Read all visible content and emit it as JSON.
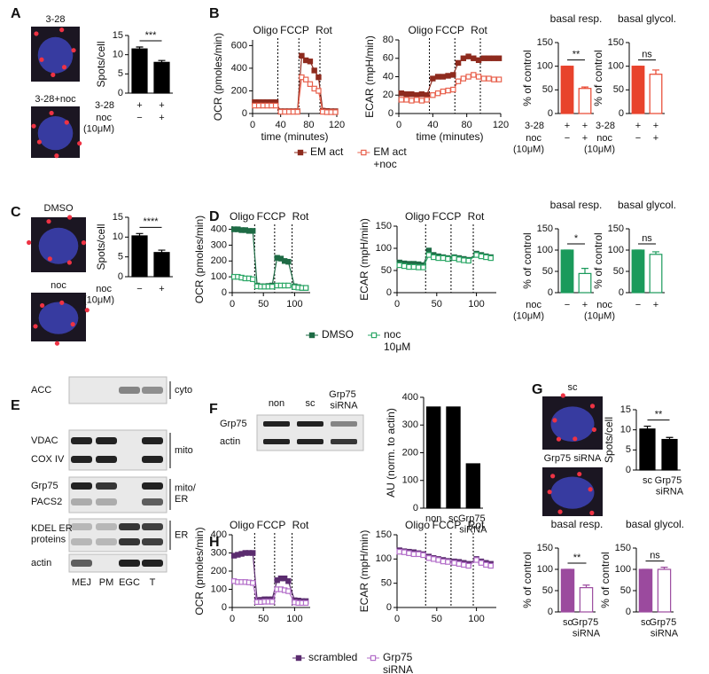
{
  "panel_labels": [
    "A",
    "B",
    "C",
    "D",
    "E",
    "F",
    "G",
    "H"
  ],
  "images": [
    "3-28",
    "3-28+noc",
    "DMSO",
    "noc",
    "sc",
    "Grp75 siRNA"
  ],
  "blot_E": {
    "rows": [
      "ACC",
      "VDAC",
      "COX IV",
      "Grp75",
      "PACS2",
      "KDEL ER proteins",
      "actin"
    ],
    "groups": [
      "cyto",
      "mito",
      "mito/ ER",
      "ER"
    ],
    "lanes": [
      "MEJ",
      "PM",
      "EGC",
      "T"
    ]
  },
  "blot_F": {
    "rows": [
      "Grp75",
      "actin"
    ],
    "lanes": [
      "non",
      "sc",
      "Grp75 siRNA"
    ]
  },
  "chart_data": [
    {
      "type": "bar",
      "ylabel": "Spots/cell",
      "ylim": [
        0,
        15
      ],
      "yticks": [
        0,
        5,
        10,
        15
      ],
      "values": [
        11.5,
        8
      ],
      "errors": [
        0.5,
        0.5
      ],
      "color": "#000000",
      "significance": "***",
      "conditions": [
        {
          "label": "3-28",
          "marks": [
            "+",
            "+"
          ]
        },
        {
          "label": "noc (10μM)",
          "marks": [
            "−",
            "+"
          ]
        }
      ]
    },
    {
      "type": "line",
      "ylabel": "OCR (pmoles/min)",
      "xlabel": "time (minutes)",
      "xlim": [
        0,
        120
      ],
      "xticks": [
        0,
        40,
        80,
        120
      ],
      "ylim": [
        0,
        650
      ],
      "yticks": [
        0,
        200,
        400,
        600
      ],
      "injections": [
        {
          "label": "Oligo",
          "x": 36
        },
        {
          "label": "FCCP",
          "x": 66
        },
        {
          "label": "Rot",
          "x": 96
        }
      ],
      "x": [
        3,
        9,
        15,
        21,
        27,
        33,
        40,
        46,
        52,
        58,
        64,
        70,
        76,
        82,
        88,
        94,
        100,
        106,
        112,
        118
      ],
      "series": [
        {
          "name": "EM act",
          "color": "#8e2b1e",
          "marker": "filled",
          "values": [
            100,
            100,
            100,
            100,
            100,
            100,
            20,
            20,
            20,
            20,
            20,
            510,
            470,
            460,
            380,
            320,
            25,
            22,
            20,
            20
          ]
        },
        {
          "name": "EM act +noc",
          "color": "#e8604c",
          "marker": "hollow",
          "values": [
            70,
            70,
            70,
            70,
            70,
            70,
            15,
            15,
            15,
            15,
            15,
            320,
            300,
            260,
            220,
            200,
            15,
            12,
            12,
            12
          ]
        }
      ]
    },
    {
      "type": "line",
      "ylabel": "ECAR (mpH/min)",
      "xlabel": "time (minutes)",
      "xlim": [
        0,
        120
      ],
      "xticks": [
        0,
        40,
        80,
        120
      ],
      "ylim": [
        0,
        80
      ],
      "yticks": [
        0,
        20,
        40,
        60,
        80
      ],
      "injections": [
        {
          "label": "Oligo",
          "x": 36
        },
        {
          "label": "FCCP",
          "x": 66
        },
        {
          "label": "Rot",
          "x": 96
        }
      ],
      "x": [
        3,
        9,
        15,
        21,
        27,
        33,
        40,
        46,
        52,
        58,
        64,
        70,
        76,
        82,
        88,
        94,
        100,
        106,
        112,
        118
      ],
      "series": [
        {
          "color": "#8e2b1e",
          "marker": "filled",
          "values": [
            22,
            21,
            21,
            20,
            21,
            20,
            38,
            40,
            40,
            41,
            42,
            55,
            60,
            62,
            60,
            58,
            60,
            60,
            60,
            60
          ]
        },
        {
          "color": "#e8604c",
          "marker": "hollow",
          "values": [
            15,
            15,
            14,
            15,
            14,
            15,
            20,
            22,
            24,
            25,
            26,
            35,
            38,
            40,
            42,
            40,
            38,
            38,
            37,
            37
          ]
        }
      ]
    },
    {
      "type": "bar",
      "title": "basal resp.",
      "ylabel": "% of control",
      "ylim": [
        0,
        150
      ],
      "yticks": [
        0,
        50,
        100,
        150
      ],
      "values": [
        100,
        53
      ],
      "errors": [
        0,
        3
      ],
      "color": "#e8432c",
      "hollow": [
        false,
        true
      ],
      "significance": "**",
      "conditions": [
        {
          "label": "3-28",
          "marks": [
            "+",
            "+"
          ]
        },
        {
          "label": "noc (10μM)",
          "marks": [
            "−",
            "+"
          ]
        }
      ]
    },
    {
      "type": "bar",
      "title": "basal glycol.",
      "ylabel": "% of control",
      "ylim": [
        0,
        150
      ],
      "yticks": [
        0,
        50,
        100,
        150
      ],
      "values": [
        100,
        83
      ],
      "errors": [
        0,
        9
      ],
      "color": "#e8432c",
      "hollow": [
        false,
        true
      ],
      "significance": "ns",
      "conditions": [
        {
          "label": "3-28",
          "marks": [
            "+",
            "+"
          ]
        },
        {
          "label": "noc (10μM)",
          "marks": [
            "−",
            "+"
          ]
        }
      ]
    },
    {
      "type": "bar",
      "ylabel": "Spots/cell",
      "ylim": [
        0,
        15
      ],
      "yticks": [
        0,
        5,
        10,
        15
      ],
      "values": [
        10.3,
        6.1
      ],
      "errors": [
        0.6,
        0.6
      ],
      "color": "#000000",
      "significance": "****",
      "conditions": [
        {
          "label": "noc (10μM)",
          "marks": [
            "−",
            "+"
          ]
        }
      ]
    },
    {
      "type": "line",
      "ylabel": "OCR (pmoles/min)",
      "xlim": [
        0,
        125
      ],
      "xticks": [
        0,
        50,
        100
      ],
      "ylim": [
        0,
        420
      ],
      "yticks": [
        0,
        100,
        200,
        300,
        400
      ],
      "injections": [
        {
          "label": "Oligo",
          "x": 36
        },
        {
          "label": "FCCP",
          "x": 68
        },
        {
          "label": "Rot",
          "x": 96
        }
      ],
      "x": [
        3,
        9,
        15,
        21,
        27,
        33,
        40,
        46,
        52,
        58,
        64,
        72,
        78,
        84,
        90,
        100,
        106,
        112,
        118
      ],
      "series": [
        {
          "name": "DMSO",
          "color": "#1e6b45",
          "marker": "filled",
          "values": [
            400,
            400,
            395,
            395,
            390,
            390,
            45,
            40,
            40,
            42,
            45,
            220,
            215,
            200,
            195,
            40,
            35,
            30,
            30
          ]
        },
        {
          "name": "noc 10μM",
          "color": "#2ea868",
          "marker": "hollow",
          "values": [
            100,
            100,
            95,
            90,
            90,
            85,
            40,
            38,
            38,
            38,
            38,
            45,
            45,
            45,
            45,
            35,
            32,
            30,
            30
          ]
        }
      ]
    },
    {
      "type": "line",
      "ylabel": "ECAR (mpH/min)",
      "xlim": [
        0,
        125
      ],
      "xticks": [
        0,
        50,
        100
      ],
      "ylim": [
        0,
        150
      ],
      "yticks": [
        0,
        50,
        100,
        150
      ],
      "injections": [
        {
          "label": "Oligo",
          "x": 36
        },
        {
          "label": "FCCP",
          "x": 68
        },
        {
          "label": "Rot",
          "x": 96
        }
      ],
      "x": [
        3,
        9,
        15,
        21,
        27,
        33,
        40,
        46,
        52,
        58,
        64,
        72,
        78,
        84,
        90,
        100,
        106,
        112,
        118
      ],
      "series": [
        {
          "color": "#1e6b45",
          "marker": "filled",
          "values": [
            68,
            66,
            65,
            65,
            64,
            62,
            95,
            85,
            82,
            80,
            78,
            80,
            78,
            76,
            74,
            88,
            85,
            82,
            80
          ]
        },
        {
          "color": "#2ea868",
          "marker": "hollow",
          "values": [
            62,
            60,
            58,
            58,
            57,
            57,
            85,
            80,
            78,
            78,
            76,
            78,
            75,
            73,
            72,
            85,
            82,
            80,
            78
          ]
        }
      ]
    },
    {
      "type": "bar",
      "title": "basal resp.",
      "ylabel": "% of control",
      "ylim": [
        0,
        150
      ],
      "yticks": [
        0,
        50,
        100,
        150
      ],
      "values": [
        100,
        45
      ],
      "errors": [
        0,
        12
      ],
      "color": "#1a9a5b",
      "hollow": [
        false,
        true
      ],
      "significance": "*",
      "conditions": [
        {
          "label": "noc (10μM)",
          "marks": [
            "−",
            "+"
          ]
        }
      ]
    },
    {
      "type": "bar",
      "title": "basal glycol.",
      "ylabel": "% of control",
      "ylim": [
        0,
        150
      ],
      "yticks": [
        0,
        50,
        100,
        150
      ],
      "values": [
        100,
        90
      ],
      "errors": [
        0,
        6
      ],
      "color": "#1a9a5b",
      "hollow": [
        false,
        true
      ],
      "significance": "ns",
      "conditions": [
        {
          "label": "noc (10μM)",
          "marks": [
            "−",
            "+"
          ]
        }
      ]
    },
    {
      "type": "bar",
      "ylabel": "AU (norm. to actin)",
      "ylim": [
        0,
        400
      ],
      "yticks": [
        0,
        100,
        200,
        300,
        400
      ],
      "categories": [
        "non",
        "sc",
        "Grp75 siRNA"
      ],
      "values": [
        365,
        365,
        160
      ],
      "color": "#000000"
    },
    {
      "type": "bar",
      "ylabel": "Spots/cell",
      "ylim": [
        0,
        15
      ],
      "yticks": [
        0,
        5,
        10,
        15
      ],
      "categories": [
        "sc",
        "Grp75 siRNA"
      ],
      "values": [
        10.2,
        7.6
      ],
      "errors": [
        0.7,
        0.5
      ],
      "color": "#000000",
      "significance": "**"
    },
    {
      "type": "bar",
      "title": "basal resp.",
      "ylabel": "% of control",
      "ylim": [
        0,
        150
      ],
      "yticks": [
        0,
        50,
        100,
        150
      ],
      "categories": [
        "sc",
        "Grp75 siRNA"
      ],
      "values": [
        100,
        57
      ],
      "errors": [
        0,
        6
      ],
      "color": "#9b4a9e",
      "hollow": [
        false,
        true
      ],
      "significance": "**"
    },
    {
      "type": "bar",
      "title": "basal glycol.",
      "ylabel": "% of control",
      "ylim": [
        0,
        150
      ],
      "yticks": [
        0,
        50,
        100,
        150
      ],
      "categories": [
        "sc",
        "Grp75 siRNA"
      ],
      "values": [
        100,
        100
      ],
      "errors": [
        0,
        5
      ],
      "color": "#9b4a9e",
      "hollow": [
        false,
        true
      ],
      "significance": "ns"
    },
    {
      "type": "line",
      "ylabel": "OCR (pmoles/min)",
      "xlim": [
        0,
        125
      ],
      "xticks": [
        0,
        50,
        100
      ],
      "ylim": [
        0,
        400
      ],
      "yticks": [
        0,
        100,
        200,
        300,
        400
      ],
      "injections": [
        {
          "label": "Oligo",
          "x": 36
        },
        {
          "label": "FCCP",
          "x": 68
        },
        {
          "label": "Rot",
          "x": 96
        }
      ],
      "x": [
        3,
        9,
        15,
        21,
        27,
        33,
        40,
        46,
        52,
        58,
        64,
        72,
        78,
        84,
        90,
        100,
        106,
        112,
        118
      ],
      "series": [
        {
          "name": "scrambled",
          "color": "#5b2c6f",
          "marker": "filled",
          "values": [
            285,
            290,
            295,
            300,
            300,
            300,
            40,
            42,
            45,
            45,
            45,
            150,
            160,
            160,
            145,
            40,
            38,
            35,
            35
          ]
        },
        {
          "name": "Grp75 siRNA",
          "color": "#b36ec9",
          "marker": "hollow",
          "values": [
            145,
            140,
            140,
            140,
            138,
            135,
            30,
            30,
            32,
            32,
            32,
            100,
            100,
            95,
            90,
            28,
            25,
            25,
            25
          ]
        }
      ]
    },
    {
      "type": "line",
      "ylabel": "ECAR (mpH/min)",
      "xlim": [
        0,
        125
      ],
      "xticks": [
        0,
        50,
        100
      ],
      "ylim": [
        0,
        150
      ],
      "yticks": [
        0,
        50,
        100,
        150
      ],
      "injections": [
        {
          "label": "Oligo",
          "x": 36
        },
        {
          "label": "FCCP",
          "x": 68
        },
        {
          "label": "Rot",
          "x": 96
        }
      ],
      "x": [
        3,
        9,
        15,
        21,
        27,
        33,
        40,
        46,
        52,
        58,
        64,
        72,
        78,
        84,
        90,
        100,
        106,
        112,
        118
      ],
      "series": [
        {
          "color": "#5b2c6f",
          "marker": "filled",
          "values": [
            118,
            116,
            115,
            114,
            112,
            110,
            105,
            102,
            100,
            98,
            96,
            95,
            94,
            92,
            90,
            100,
            95,
            92,
            90
          ]
        },
        {
          "color": "#b36ec9",
          "marker": "hollow",
          "values": [
            115,
            114,
            112,
            110,
            110,
            108,
            102,
            100,
            98,
            95,
            94,
            92,
            90,
            88,
            86,
            98,
            92,
            88,
            86
          ]
        }
      ]
    }
  ]
}
